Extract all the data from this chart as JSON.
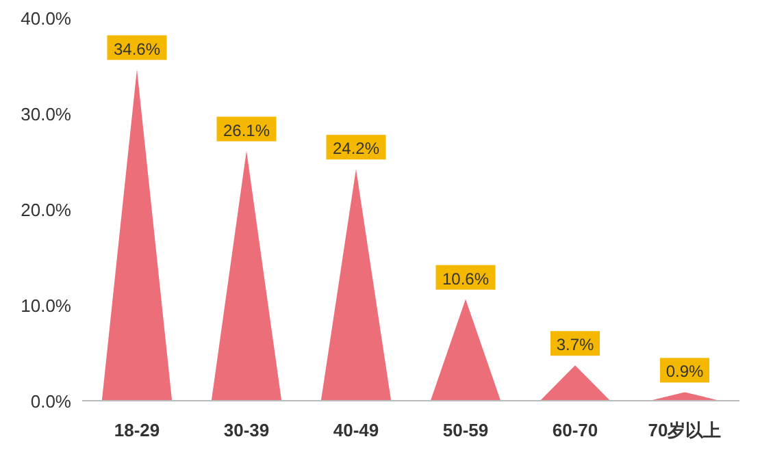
{
  "chart_data": {
    "type": "bar",
    "categories": [
      "18-29",
      "30-39",
      "40-49",
      "50-59",
      "60-70",
      "70岁以上"
    ],
    "values": [
      34.6,
      26.1,
      24.2,
      10.6,
      3.7,
      0.9
    ],
    "value_labels": [
      "34.6%",
      "26.1%",
      "24.2%",
      "10.6%",
      "3.7%",
      "0.9%"
    ],
    "color": "#ec6e78",
    "ylim": [
      0,
      40
    ],
    "yticks": [
      {
        "value": 0,
        "label": "0.0%"
      },
      {
        "value": 10,
        "label": "10.0%"
      },
      {
        "value": 20,
        "label": "20.0%"
      },
      {
        "value": 30,
        "label": "30.0%"
      },
      {
        "value": 40,
        "label": "40.0%"
      }
    ]
  }
}
